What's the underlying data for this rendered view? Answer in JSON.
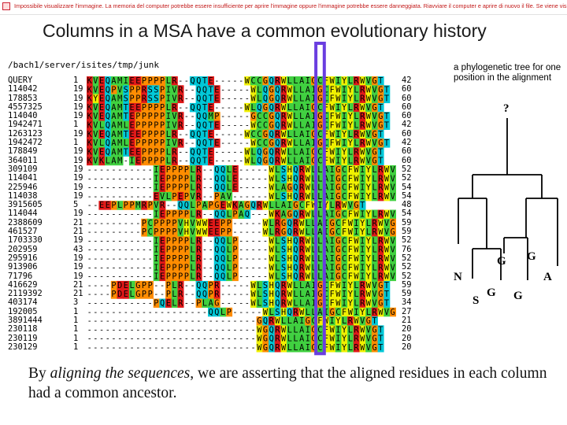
{
  "notice_text": "Impossibile visualizzare l'immagine. La memoria del computer potrebbe essere insufficiente per aprire l'immagine oppure l'immagine potrebbe essere danneggiata. Riavviare il computer e aprire di nuovo il file. Se viene visualizzata di nuovo la x rossa, potrebbe essere",
  "title": "Columns in a MSA have a common evolutionary history",
  "path": "/bach1/server/isites/tmp/junk",
  "colors": {
    "hydrophobic": "#40d040",
    "acidic": "#e01818",
    "aromatic": "#f0f000",
    "special": "#ff8c00",
    "polar": "#00c8d8",
    "highlight_box": "#6a3ee0"
  },
  "rows": [
    {
      "name": "QUERY",
      "start": "1",
      "seq": "KVEQAMIEEPPPPLR--QQTE-----WCCGQRWLLAIGCFWIYLRWVGT",
      "end": "42"
    },
    {
      "name": "114042",
      "start": "19",
      "seq": "KVEQPVSPPRSSPIVR--QQTE-----WLQGQRWLLAIGCFWIYLRWVGT",
      "end": "60"
    },
    {
      "name": "178853",
      "start": "19",
      "seq": "KYEQAMSPPRSSPIVR--QQTE-----WLQGQRWLLAIGCFWIYLRWVGT",
      "end": "60"
    },
    {
      "name": "4557325",
      "start": "19",
      "seq": "KVEQAMTEEPPPPLR--QQTE-----WLQGQRWLLAIGCFWIYLRWVGT",
      "end": "60"
    },
    {
      "name": "114040",
      "start": "19",
      "seq": "KVEQAMTEPPPPPIVR--QQMP-----GCCGQRWLLAIGCFWIYLRWVGT",
      "end": "60"
    },
    {
      "name": "1942471",
      "start": "1",
      "seq": "KVLQAMLEPPPPPIVR--QQTE-----WCCGQRWLLAIGCFWIYLRWVGT",
      "end": "42"
    },
    {
      "name": "1263123",
      "start": "19",
      "seq": "KVEQAMTEEPPPPLR--QQTE-----WCCGQRWLLAIGCFWIYLRWVGT",
      "end": "60"
    },
    {
      "name": "1942472",
      "start": "1",
      "seq": "KVLQAMLEPPPPPIVR--QQTE-----WCCGQRWLLAIGCFWIYLRWVGT",
      "end": "42"
    },
    {
      "name": "178849",
      "start": "19",
      "seq": "KVEQAMTEEPPPPLR--QQTE-----WLQGQRWLLAIGCFWIYLRWVGT",
      "end": "60"
    },
    {
      "name": "364011",
      "start": "19",
      "seq": "KVKLAM-IEPPPPLR--QQTE-----WLQGQRWLLAIGCFWIYLRWVGT",
      "end": "60"
    },
    {
      "name": "309109",
      "start": "19",
      "seq": "-----------IEPPPPLR--QQLE-----WLSHQRWLLAIGCFWIYLRWVGT",
      "end": "52"
    },
    {
      "name": "114041",
      "start": "19",
      "seq": "-----------IEPPPPLR--QQLE-----WLSHQRWLLAIGCFWIYLRWVGT",
      "end": "52"
    },
    {
      "name": "225946",
      "start": "19",
      "seq": "-----------IEPPPPLR--QQLE-----WLAGQRWLLAIGCFWIYLRWVGS",
      "end": "54"
    },
    {
      "name": "114038",
      "start": "19",
      "seq": "-----------EVLPEPVR--PAV------WLSHQRWLLAIGCFWIYLRWVGT",
      "end": "54"
    },
    {
      "name": "3915605",
      "start": "5",
      "seq": "--EEPLPPMRPVR--QQLPAPGEWKAGQRWLLAIGCFWIYLRWVGT",
      "end": "48"
    },
    {
      "name": "114044",
      "start": "19",
      "seq": "-----------IEPPPPLR--QQLPAQ---WKAGQRWLLAIGCFWIYLRWVGS",
      "end": "54"
    },
    {
      "name": "2388609",
      "start": "21",
      "seq": "---------PCPPPPVHVWWEEPP-----WLRGQRWLLAIGCFWIYLRWVGS",
      "end": "59"
    },
    {
      "name": "461527",
      "start": "21",
      "seq": "---------PCPPPPVHVWWEEPP-----WLRGQRWLLAIGCFWIYLRWVGS",
      "end": "59"
    },
    {
      "name": "1703330",
      "start": "19",
      "seq": "-----------IEPPPPLR--QQLP-----WLSHQRWLLAIGCFWIYLRWVGT",
      "end": "52"
    },
    {
      "name": "202959",
      "start": "43",
      "seq": "-----------IEPPPPLR--QQLP-----WLSHQRWLLAIGCFWIYLRWVGT",
      "end": "76"
    },
    {
      "name": "295916",
      "start": "19",
      "seq": "-----------IEPPPPLR--QQLP-----WLSHQRWLLAIGCFWIYLRWVGT",
      "end": "52"
    },
    {
      "name": "913906",
      "start": "19",
      "seq": "-----------IEPPPPLR--QQLP-----WLSHQRWLLAIGCFWIYLRWVGT",
      "end": "52"
    },
    {
      "name": "71796",
      "start": "19",
      "seq": "-----------IEPPPPLR--QQLP-----WLSHQRWLLAIGCFWIYLRWVGT",
      "end": "52"
    },
    {
      "name": "416629",
      "start": "21",
      "seq": "----PDELGPP--PLR--QQPR-----WLSHQRWLLAIGCFWIYLRWVGT",
      "end": "59"
    },
    {
      "name": "2119392",
      "start": "21",
      "seq": "----PDELGPP--PLR--QQPR-----WLSHQRWLLAIGCFWIYLRWVGT",
      "end": "59"
    },
    {
      "name": "403174",
      "start": "3",
      "seq": "-----------PQELR--PLAG-----WLSHQRWLLAIGCFWIYLRWVGT",
      "end": "34"
    },
    {
      "name": "192005",
      "start": "1",
      "seq": "--------------------QQLP-----WLSHQRWLLAIGCFWIYLRWVGT",
      "end": "27"
    },
    {
      "name": "3891444",
      "start": "1",
      "seq": "----------------------------GQRWLLAIGCFWIYLRWVGT",
      "end": "21"
    },
    {
      "name": "230118",
      "start": "1",
      "seq": "----------------------------WGQRWLLAIGCFWIYLRWVGT",
      "end": "20"
    },
    {
      "name": "230119",
      "start": "1",
      "seq": "----------------------------WGQRWLLAIGCFWIYLRWVGT",
      "end": "20"
    },
    {
      "name": "230129",
      "start": "1",
      "seq": "----------------------------WGQRWLLAIGCFWIYLRWVGT",
      "end": "20"
    }
  ],
  "tree": {
    "note": "a phylogenetic tree for one position in the alignment",
    "root_label": "?",
    "leaves": [
      "N",
      "S",
      "G",
      "G",
      "G",
      "A"
    ],
    "internal_labels": [
      "G"
    ]
  },
  "caption": {
    "part1": "By ",
    "italic": "aligning the sequences",
    "part2": ", we are asserting that the aligned residues in each column had a common ancestor."
  }
}
